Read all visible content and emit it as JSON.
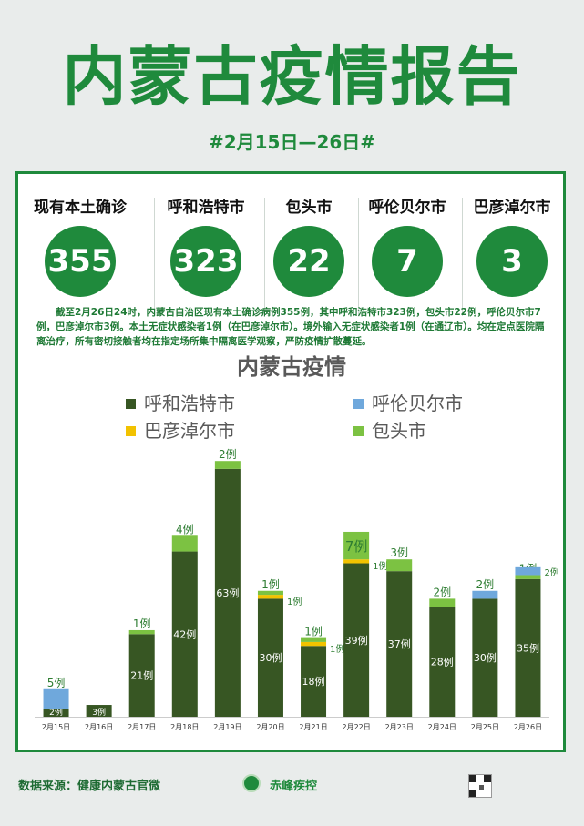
{
  "header": {
    "title": "内蒙古疫情报告",
    "date_range": "#2月15日—26日#"
  },
  "stats": [
    {
      "label": "现有本土确诊",
      "value": "355"
    },
    {
      "label": "呼和浩特市",
      "value": "323"
    },
    {
      "label": "包头市",
      "value": "22"
    },
    {
      "label": "呼伦贝尔市",
      "value": "7"
    },
    {
      "label": "巴彦淖尔市",
      "value": "3"
    }
  ],
  "summary": "截至2月26日24时，内蒙古自治区现有本土确诊病例355例，其中呼和浩特市323例，包头市22例，呼伦贝尔市7例，巴彦淖尔市3例。本土无症状感染者1例（在巴彦淖尔市）。境外输入无症状感染者1例（在通辽市）。均在定点医院隔离治疗，所有密切接触者均在指定场所集中隔离医学观察，严防疫情扩散蔓延。",
  "chart_data": {
    "type": "bar",
    "stacked": true,
    "title": "内蒙古疫情",
    "legend_position": "top",
    "categories": [
      "2月15日",
      "2月16日",
      "2月17日",
      "2月18日",
      "2月19日",
      "2月20日",
      "2月21日",
      "2月22日",
      "2月23日",
      "2月24日",
      "2月25日",
      "2月26日"
    ],
    "series": [
      {
        "name": "呼和浩特市",
        "color": "#375623",
        "values": [
          2,
          3,
          21,
          42,
          63,
          30,
          18,
          39,
          37,
          28,
          30,
          35
        ],
        "labels": [
          "2例",
          "3例",
          "21例",
          "42例",
          "63例",
          "30例",
          "18例",
          "39例",
          "37例",
          "28例",
          "30例",
          "35例"
        ]
      },
      {
        "name": "巴彦淖尔市",
        "color": "#f2c200",
        "values": [
          0,
          0,
          0,
          0,
          0,
          1,
          1,
          1,
          0,
          0,
          0,
          0
        ],
        "labels": [
          "",
          "",
          "",
          "",
          "",
          "1例",
          "1例",
          "1例",
          "",
          "",
          "",
          ""
        ]
      },
      {
        "name": "包头市",
        "color": "#7cc242",
        "values": [
          0,
          0,
          1,
          4,
          2,
          1,
          1,
          7,
          3,
          2,
          0,
          1
        ],
        "labels": [
          "",
          "",
          "1例",
          "4例",
          "2例",
          "1例",
          "1例",
          "7例",
          "3例",
          "2例",
          "",
          "1例"
        ]
      },
      {
        "name": "呼伦贝尔市",
        "color": "#6fa8dc",
        "values": [
          5,
          0,
          0,
          0,
          0,
          0,
          0,
          0,
          0,
          0,
          2,
          2
        ],
        "labels": [
          "5例",
          "",
          "",
          "",
          "",
          "",
          "",
          "",
          "",
          "",
          "2例",
          "2例"
        ]
      }
    ],
    "legend_order": [
      "呼和浩特市",
      "呼伦贝尔市",
      "巴彦淖尔市",
      "包头市"
    ],
    "ylim": [
      0,
      70
    ]
  },
  "footer": {
    "source": "数据来源：健康内蒙古官微",
    "org": "赤峰疾控"
  }
}
